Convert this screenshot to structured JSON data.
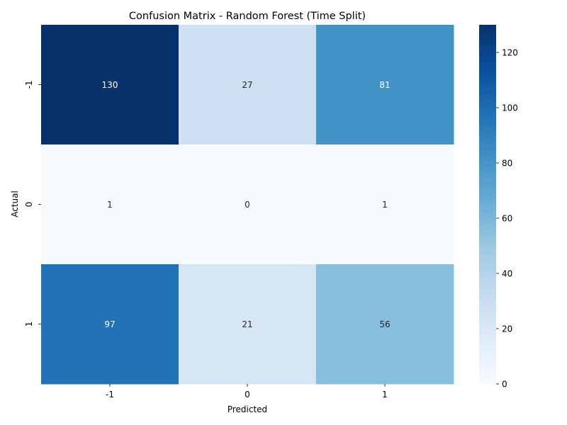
{
  "chart_data": {
    "type": "heatmap",
    "title": "Confusion Matrix - Random Forest (Time Split)",
    "xlabel": "Predicted",
    "ylabel": "Actual",
    "x_categories": [
      "-1",
      "0",
      "1"
    ],
    "y_categories": [
      "-1",
      "0",
      "1"
    ],
    "values": [
      [
        130,
        27,
        81
      ],
      [
        1,
        0,
        1
      ],
      [
        97,
        21,
        56
      ]
    ],
    "colormap": "Blues",
    "colorbar": {
      "range": [
        0,
        130
      ],
      "ticks": [
        "0",
        "20",
        "40",
        "60",
        "80",
        "100",
        "120"
      ]
    },
    "grid": false,
    "annotations": true
  }
}
